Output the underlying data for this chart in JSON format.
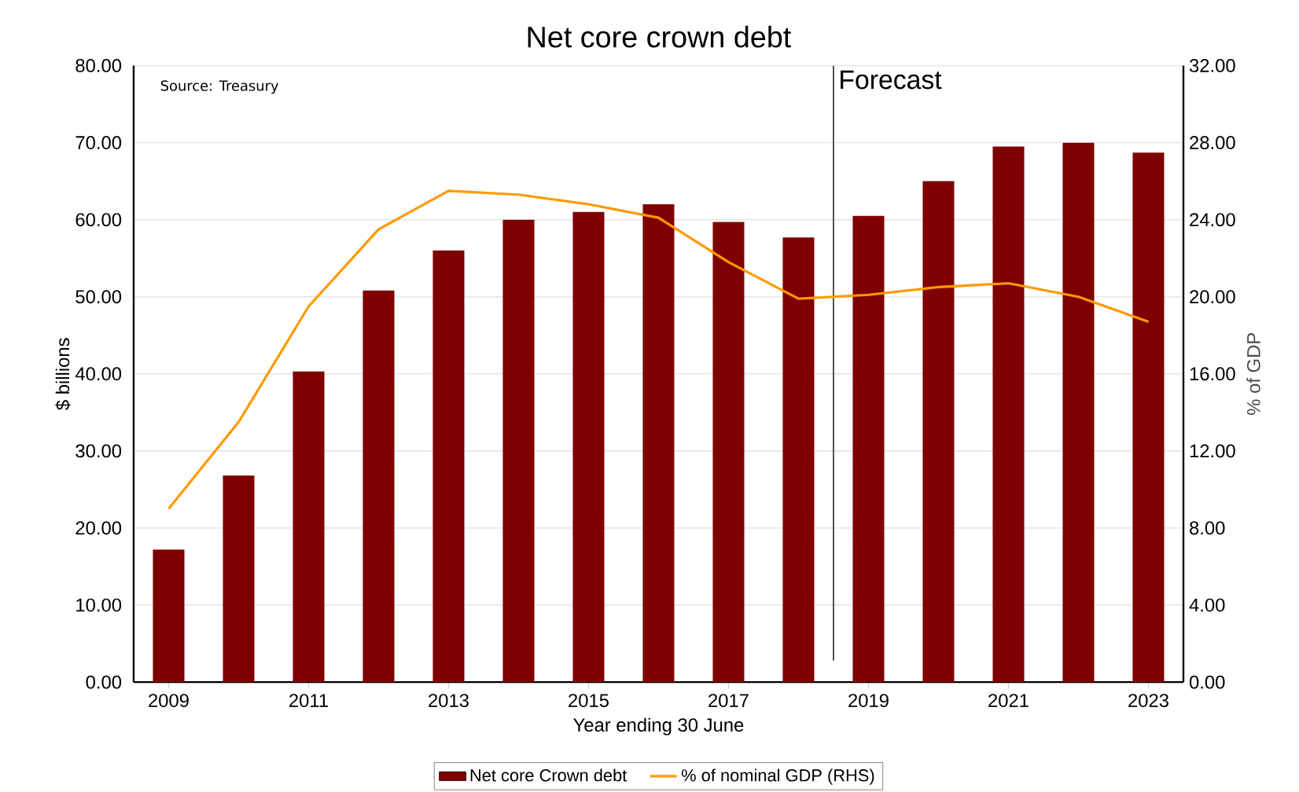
{
  "chart_data": {
    "type": "bar",
    "title": "Net core crown debt",
    "xlabel": "Year ending 30 June",
    "ylabel": "$ billions",
    "y2label": "% of GDP",
    "x": [
      2009,
      2010,
      2011,
      2012,
      2013,
      2014,
      2015,
      2016,
      2017,
      2018,
      2019,
      2020,
      2021,
      2022,
      2023
    ],
    "xlim": [
      2008.5,
      2023.5
    ],
    "xticks": [
      2009,
      2011,
      2013,
      2015,
      2017,
      2019,
      2021,
      2023
    ],
    "ylim": [
      0,
      80
    ],
    "yticks": [
      {
        "value": 0,
        "label": "0.00"
      },
      {
        "value": 10,
        "label": "10.00"
      },
      {
        "value": 20,
        "label": "20.00"
      },
      {
        "value": 30,
        "label": "30.00"
      },
      {
        "value": 40,
        "label": "40.00"
      },
      {
        "value": 50,
        "label": "50.00"
      },
      {
        "value": 60,
        "label": "60.00"
      },
      {
        "value": 70,
        "label": "70.00"
      },
      {
        "value": 80,
        "label": "80.00"
      }
    ],
    "y2lim": [
      0,
      32
    ],
    "y2ticks": [
      {
        "value": 0,
        "label": "0.00"
      },
      {
        "value": 4,
        "label": "4.00"
      },
      {
        "value": 8,
        "label": "8.00"
      },
      {
        "value": 12,
        "label": "12.00"
      },
      {
        "value": 16,
        "label": "16.00"
      },
      {
        "value": 20,
        "label": "20.00"
      },
      {
        "value": 24,
        "label": "24.00"
      },
      {
        "value": 28,
        "label": "28.00"
      },
      {
        "value": 32,
        "label": "32.00"
      }
    ],
    "series": [
      {
        "name": "Net core Crown debt",
        "color": "#7f0000",
        "values": [
          17.2,
          26.8,
          40.3,
          50.8,
          56.0,
          60.0,
          61.0,
          62.0,
          59.7,
          57.7,
          60.5,
          65.0,
          69.5,
          70.0,
          68.7
        ]
      },
      {
        "name": "% of nominal GDP (RHS)",
        "type": "line",
        "axis": "y2",
        "color": "#ff9900",
        "values": [
          9.0,
          13.5,
          19.5,
          23.5,
          25.5,
          25.3,
          24.8,
          24.1,
          21.8,
          19.9,
          20.1,
          20.5,
          20.7,
          20.0,
          18.7
        ]
      }
    ],
    "ref_lines": [
      {
        "axis": "x",
        "value": 2018.5,
        "label": "Forecast",
        "color": "#404040"
      }
    ],
    "annotations": [
      "Source: Treasury"
    ],
    "grid": "y",
    "legend": "bottom"
  }
}
